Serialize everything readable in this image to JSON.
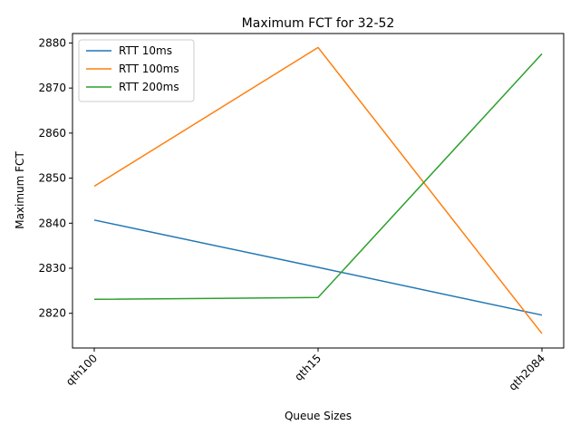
{
  "chart_data": {
    "type": "line",
    "title": "Maximum FCT for 32-52",
    "xlabel": "Queue Sizes",
    "ylabel": "Maximum FCT",
    "categories": [
      "qth100",
      "qth15",
      "qth2084"
    ],
    "ylim": [
      2812.3,
      2882.1
    ],
    "yticks": [
      2820,
      2830,
      2840,
      2850,
      2860,
      2870,
      2880
    ],
    "grid": false,
    "legend_position": "top-left",
    "series": [
      {
        "name": "RTT 10ms",
        "color": "#1f77b4",
        "values": [
          2840.7,
          2830.2,
          2819.6
        ]
      },
      {
        "name": "RTT 100ms",
        "color": "#ff7f0e",
        "values": [
          2848.2,
          2879.0,
          2815.5
        ]
      },
      {
        "name": "RTT 200ms",
        "color": "#2ca02c",
        "values": [
          2823.1,
          2823.5,
          2877.6
        ]
      }
    ]
  }
}
